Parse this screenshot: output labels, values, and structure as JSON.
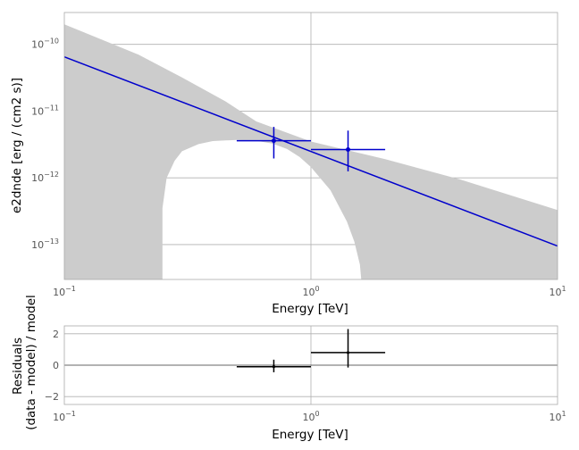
{
  "chart_data": [
    {
      "type": "line",
      "xlabel": "Energy [TeV]",
      "ylabel": "e2dnde [erg / (cm2 s)]",
      "xscale": "log",
      "yscale": "log",
      "xlim": [
        0.1,
        10
      ],
      "ylim": [
        3e-14,
        3e-10
      ],
      "grid": true,
      "x_ticks": [
        {
          "base": "10",
          "exp": "−1",
          "value": 0.1
        },
        {
          "base": "10",
          "exp": "0",
          "value": 1
        },
        {
          "base": "10",
          "exp": "1",
          "value": 10
        }
      ],
      "y_ticks": [
        {
          "base": "10",
          "exp": "−10",
          "value": 1e-10
        },
        {
          "base": "10",
          "exp": "−11",
          "value": 1e-11
        },
        {
          "base": "10",
          "exp": "−12",
          "value": 1e-12
        },
        {
          "base": "10",
          "exp": "−13",
          "value": 1e-13
        }
      ],
      "model": {
        "type": "power-law",
        "x": [
          0.1,
          10
        ],
        "y": [
          6.5e-11,
          9.5e-14
        ],
        "color": "#0000cc"
      },
      "band_upper": {
        "x": [
          0.1,
          0.2,
          0.3,
          0.45,
          0.6,
          1.0,
          2.0,
          4.0,
          10.0
        ],
        "y": [
          2e-10,
          7e-11,
          3.2e-11,
          1.4e-11,
          7e-12,
          3.5e-12,
          1.9e-12,
          9.5e-13,
          3.3e-13
        ]
      },
      "band_lower": {
        "x": [
          0.1,
          0.2,
          0.25,
          0.25,
          0.26,
          0.28,
          0.3,
          0.35,
          0.4,
          0.5,
          0.6,
          0.7,
          0.8,
          0.9,
          1.0,
          1.2,
          1.4,
          1.5,
          1.58,
          1.6,
          1.6,
          1.7,
          3.0,
          5.0,
          8.0,
          10.0
        ],
        "y": [
          3e-14,
          3e-14,
          3e-14,
          3.5e-13,
          1e-12,
          1.8e-12,
          2.5e-12,
          3.2e-12,
          3.55e-12,
          3.7e-12,
          3.6e-12,
          3.25e-12,
          2.7e-12,
          2.05e-12,
          1.45e-12,
          6.5e-13,
          2.2e-13,
          1.1e-13,
          5e-14,
          3e-14,
          3e-14,
          3e-14,
          3e-14,
          3e-14,
          3e-14,
          3e-14
        ]
      },
      "band_color": "#cccccc",
      "points": [
        {
          "x": 0.707,
          "x_lo": 0.5,
          "x_hi": 1.0,
          "y": 3.6e-12,
          "y_lo": 1.95e-12,
          "y_hi": 5.8e-12
        },
        {
          "x": 1.414,
          "x_lo": 1.0,
          "x_hi": 2.0,
          "y": 2.65e-12,
          "y_lo": 1.25e-12,
          "y_hi": 5.1e-12
        }
      ],
      "point_color": "#0000cc"
    },
    {
      "type": "scatter",
      "xlabel": "Energy [TeV]",
      "ylabel_line1": "Residuals",
      "ylabel_line2": "(data - model) / model",
      "xscale": "log",
      "xlim": [
        0.1,
        10
      ],
      "ylim": [
        -2.5,
        2.5
      ],
      "grid": true,
      "x_ticks": [
        {
          "base": "10",
          "exp": "−1",
          "value": 0.1
        },
        {
          "base": "10",
          "exp": "0",
          "value": 1
        },
        {
          "base": "10",
          "exp": "1",
          "value": 10
        }
      ],
      "y_ticks": [
        {
          "label": "2",
          "value": 2
        },
        {
          "label": "0",
          "value": 0
        },
        {
          "label": "−2",
          "value": -2
        }
      ],
      "points": [
        {
          "x": 0.707,
          "x_lo": 0.5,
          "x_hi": 1.0,
          "y": -0.1,
          "y_lo": -0.45,
          "y_hi": 0.35
        },
        {
          "x": 1.414,
          "x_lo": 1.0,
          "x_hi": 2.0,
          "y": 0.8,
          "y_lo": -0.15,
          "y_hi": 2.3
        }
      ],
      "point_color": "#000000"
    }
  ]
}
